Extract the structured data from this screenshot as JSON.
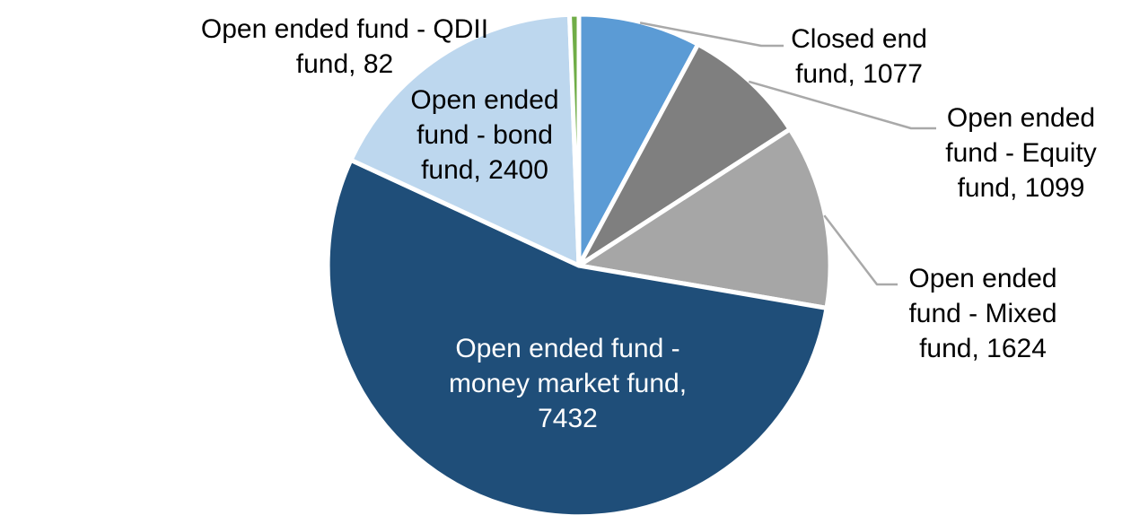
{
  "chart_data": {
    "type": "pie",
    "title": "",
    "legend": "none",
    "total": 13714,
    "direction": "clockwise",
    "start_angle_deg": 0,
    "slices": [
      {
        "id": "closed",
        "label": "Closed end fund",
        "value": 1077,
        "color": "#5B9BD5",
        "data_label": "Closed end fund, 1077",
        "label_placement": "outside-leader",
        "lines": [
          "Closed end",
          "fund, 1077"
        ]
      },
      {
        "id": "equity",
        "label": "Open ended fund - Equity fund",
        "value": 1099,
        "color": "#7F7F7F",
        "data_label": "Open ended fund - Equity fund, 1099",
        "label_placement": "outside-leader",
        "lines": [
          "Open ended",
          "fund - Equity",
          "fund, 1099"
        ]
      },
      {
        "id": "mixed",
        "label": "Open ended fund - Mixed fund",
        "value": 1624,
        "color": "#A6A6A6",
        "data_label": "Open ended fund - Mixed fund, 1624",
        "label_placement": "outside-leader",
        "lines": [
          "Open ended",
          "fund - Mixed",
          "fund, 1624"
        ]
      },
      {
        "id": "money",
        "label": "Open ended fund - money market fund",
        "value": 7432,
        "color": "#1F4E79",
        "data_label": "Open ended fund - money market fund, 7432",
        "label_placement": "inside",
        "lines": [
          "Open ended fund -",
          "money market fund,",
          "7432"
        ]
      },
      {
        "id": "bond",
        "label": "Open ended fund - bond fund",
        "value": 2400,
        "color": "#BDD7EE",
        "data_label": "Open ended fund - bond fund, 2400",
        "label_placement": "outside",
        "lines": [
          "Open ended",
          "fund - bond",
          "fund, 2400"
        ]
      },
      {
        "id": "qdii",
        "label": "Open ended fund - QDII fund",
        "value": 82,
        "color": "#70AD47",
        "data_label": "Open ended fund - QDII fund, 82",
        "label_placement": "outside",
        "lines": [
          "Open ended fund - QDII",
          "fund, 82"
        ]
      }
    ],
    "colors": {
      "slice_border": "#FFFFFF",
      "leader_line": "#A9A9A9",
      "label_text": "#000000",
      "inside_label_text": "#FFFFFF",
      "background": "#FFFFFF"
    }
  }
}
